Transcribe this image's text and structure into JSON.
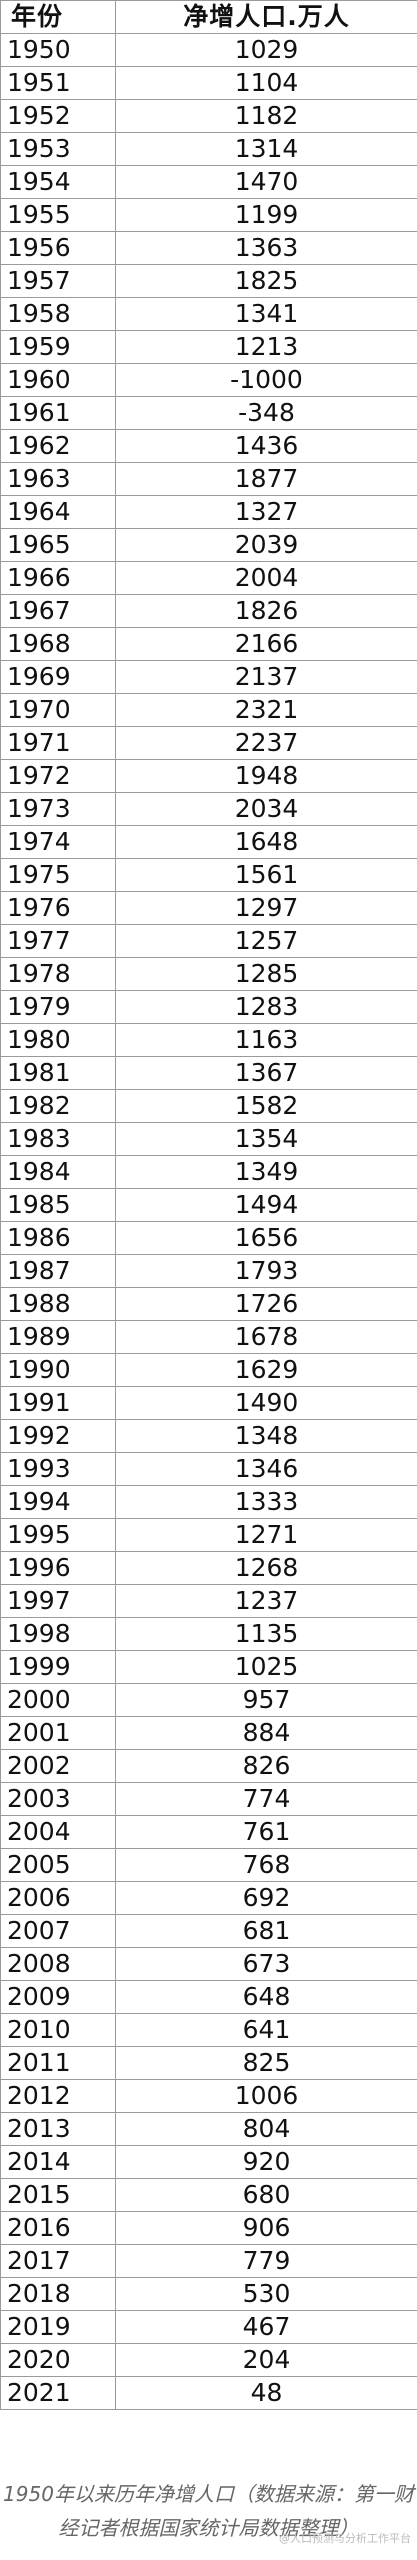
{
  "table": {
    "header_year": "年份",
    "header_value": "净增人口.万人",
    "rows": [
      {
        "year": "1950",
        "value": "1029"
      },
      {
        "year": "1951",
        "value": "1104"
      },
      {
        "year": "1952",
        "value": "1182"
      },
      {
        "year": "1953",
        "value": "1314"
      },
      {
        "year": "1954",
        "value": "1470"
      },
      {
        "year": "1955",
        "value": "1199"
      },
      {
        "year": "1956",
        "value": "1363"
      },
      {
        "year": "1957",
        "value": "1825"
      },
      {
        "year": "1958",
        "value": "1341"
      },
      {
        "year": "1959",
        "value": "1213"
      },
      {
        "year": "1960",
        "value": "-1000"
      },
      {
        "year": "1961",
        "value": "-348"
      },
      {
        "year": "1962",
        "value": "1436"
      },
      {
        "year": "1963",
        "value": "1877"
      },
      {
        "year": "1964",
        "value": "1327"
      },
      {
        "year": "1965",
        "value": "2039"
      },
      {
        "year": "1966",
        "value": "2004"
      },
      {
        "year": "1967",
        "value": "1826"
      },
      {
        "year": "1968",
        "value": "2166"
      },
      {
        "year": "1969",
        "value": "2137"
      },
      {
        "year": "1970",
        "value": "2321"
      },
      {
        "year": "1971",
        "value": "2237"
      },
      {
        "year": "1972",
        "value": "1948"
      },
      {
        "year": "1973",
        "value": "2034"
      },
      {
        "year": "1974",
        "value": "1648"
      },
      {
        "year": "1975",
        "value": "1561"
      },
      {
        "year": "1976",
        "value": "1297"
      },
      {
        "year": "1977",
        "value": "1257"
      },
      {
        "year": "1978",
        "value": "1285"
      },
      {
        "year": "1979",
        "value": "1283"
      },
      {
        "year": "1980",
        "value": "1163"
      },
      {
        "year": "1981",
        "value": "1367"
      },
      {
        "year": "1982",
        "value": "1582"
      },
      {
        "year": "1983",
        "value": "1354"
      },
      {
        "year": "1984",
        "value": "1349"
      },
      {
        "year": "1985",
        "value": "1494"
      },
      {
        "year": "1986",
        "value": "1656"
      },
      {
        "year": "1987",
        "value": "1793"
      },
      {
        "year": "1988",
        "value": "1726"
      },
      {
        "year": "1989",
        "value": "1678"
      },
      {
        "year": "1990",
        "value": "1629"
      },
      {
        "year": "1991",
        "value": "1490"
      },
      {
        "year": "1992",
        "value": "1348"
      },
      {
        "year": "1993",
        "value": "1346"
      },
      {
        "year": "1994",
        "value": "1333"
      },
      {
        "year": "1995",
        "value": "1271"
      },
      {
        "year": "1996",
        "value": "1268"
      },
      {
        "year": "1997",
        "value": "1237"
      },
      {
        "year": "1998",
        "value": "1135"
      },
      {
        "year": "1999",
        "value": "1025"
      },
      {
        "year": "2000",
        "value": "957"
      },
      {
        "year": "2001",
        "value": "884"
      },
      {
        "year": "2002",
        "value": "826"
      },
      {
        "year": "2003",
        "value": "774"
      },
      {
        "year": "2004",
        "value": "761"
      },
      {
        "year": "2005",
        "value": "768"
      },
      {
        "year": "2006",
        "value": "692"
      },
      {
        "year": "2007",
        "value": "681"
      },
      {
        "year": "2008",
        "value": "673"
      },
      {
        "year": "2009",
        "value": "648"
      },
      {
        "year": "2010",
        "value": "641"
      },
      {
        "year": "2011",
        "value": "825"
      },
      {
        "year": "2012",
        "value": "1006"
      },
      {
        "year": "2013",
        "value": "804"
      },
      {
        "year": "2014",
        "value": "920"
      },
      {
        "year": "2015",
        "value": "680"
      },
      {
        "year": "2016",
        "value": "906"
      },
      {
        "year": "2017",
        "value": "779"
      },
      {
        "year": "2018",
        "value": "530"
      },
      {
        "year": "2019",
        "value": "467"
      },
      {
        "year": "2020",
        "value": "204"
      },
      {
        "year": "2021",
        "value": "48"
      }
    ]
  },
  "caption": {
    "line1": "1950年以来历年净增人口（数据来源：第一财",
    "line2": "经记者根据国家统计局数据整理）"
  },
  "watermark": "@人口预测与分析工作平台"
}
